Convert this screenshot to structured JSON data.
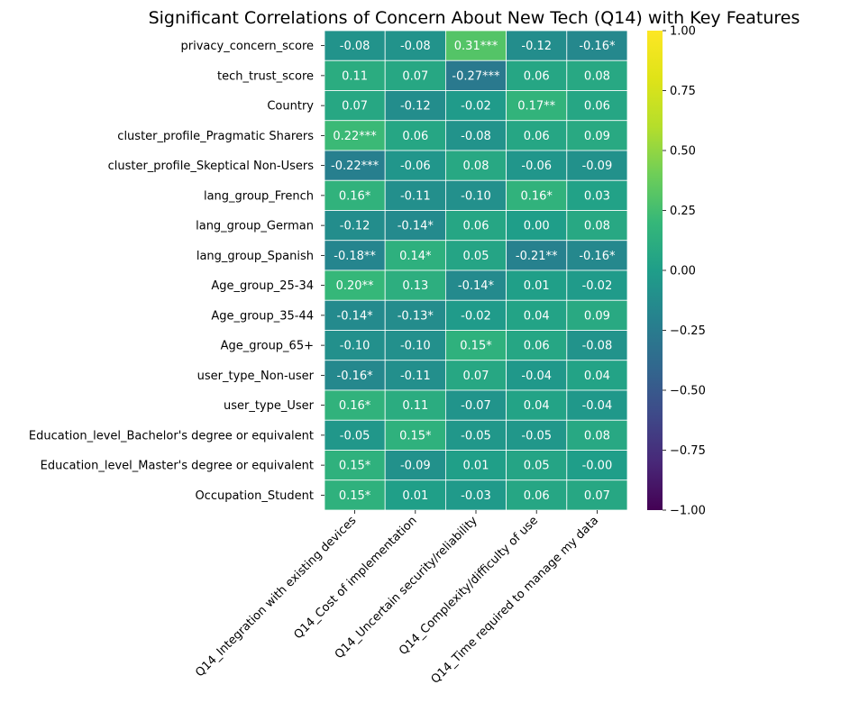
{
  "chart_data": {
    "type": "heatmap",
    "title": "Significant Correlations of Concern About New Tech (Q14) with Key Features",
    "rows": [
      "privacy_concern_score",
      "tech_trust_score",
      "Country",
      "cluster_profile_Pragmatic Sharers",
      "cluster_profile_Skeptical Non-Users",
      "lang_group_French",
      "lang_group_German",
      "lang_group_Spanish",
      "Age_group_25-34",
      "Age_group_35-44",
      "Age_group_65+",
      "user_type_Non-user",
      "user_type_User",
      "Education_level_Bachelor's degree or equivalent",
      "Education_level_Master's degree or equivalent",
      "Occupation_Student"
    ],
    "columns": [
      "Q14_Integration with existing devices",
      "Q14_Cost of implementation",
      "Q14_Uncertain security/reliability",
      "Q14_Complexity/difficulty of use",
      "Q14_Time required to manage my data"
    ],
    "values": [
      [
        -0.08,
        -0.08,
        0.31,
        -0.12,
        -0.16
      ],
      [
        0.11,
        0.07,
        -0.27,
        0.06,
        0.08
      ],
      [
        0.07,
        -0.12,
        -0.02,
        0.17,
        0.06
      ],
      [
        0.22,
        0.06,
        -0.08,
        0.06,
        0.09
      ],
      [
        -0.22,
        -0.06,
        0.08,
        -0.06,
        -0.09
      ],
      [
        0.16,
        -0.11,
        -0.1,
        0.16,
        0.03
      ],
      [
        -0.12,
        -0.14,
        0.06,
        0.0,
        0.08
      ],
      [
        -0.18,
        0.14,
        0.05,
        -0.21,
        -0.16
      ],
      [
        0.2,
        0.13,
        -0.14,
        0.01,
        -0.02
      ],
      [
        -0.14,
        -0.13,
        -0.02,
        0.04,
        0.09
      ],
      [
        -0.1,
        -0.1,
        0.15,
        0.06,
        -0.08
      ],
      [
        -0.16,
        -0.11,
        0.07,
        -0.04,
        0.04
      ],
      [
        0.16,
        0.11,
        -0.07,
        0.04,
        -0.04
      ],
      [
        -0.05,
        0.15,
        -0.05,
        -0.05,
        0.08
      ],
      [
        0.15,
        -0.09,
        0.01,
        0.05,
        -0.0
      ],
      [
        0.15,
        0.01,
        -0.03,
        0.06,
        0.07
      ]
    ],
    "annotations": [
      [
        "-0.08",
        "-0.08",
        "0.31***",
        "-0.12",
        "-0.16*"
      ],
      [
        "0.11",
        "0.07",
        "-0.27***",
        "0.06",
        "0.08"
      ],
      [
        "0.07",
        "-0.12",
        "-0.02",
        "0.17**",
        "0.06"
      ],
      [
        "0.22***",
        "0.06",
        "-0.08",
        "0.06",
        "0.09"
      ],
      [
        "-0.22***",
        "-0.06",
        "0.08",
        "-0.06",
        "-0.09"
      ],
      [
        "0.16*",
        "-0.11",
        "-0.10",
        "0.16*",
        "0.03"
      ],
      [
        "-0.12",
        "-0.14*",
        "0.06",
        "0.00",
        "0.08"
      ],
      [
        "-0.18**",
        "0.14*",
        "0.05",
        "-0.21**",
        "-0.16*"
      ],
      [
        "0.20**",
        "0.13",
        "-0.14*",
        "0.01",
        "-0.02"
      ],
      [
        "-0.14*",
        "-0.13*",
        "-0.02",
        "0.04",
        "0.09"
      ],
      [
        "-0.10",
        "-0.10",
        "0.15*",
        "0.06",
        "-0.08"
      ],
      [
        "-0.16*",
        "-0.11",
        "0.07",
        "-0.04",
        "0.04"
      ],
      [
        "0.16*",
        "0.11",
        "-0.07",
        "0.04",
        "-0.04"
      ],
      [
        "-0.05",
        "0.15*",
        "-0.05",
        "-0.05",
        "0.08"
      ],
      [
        "0.15*",
        "-0.09",
        "0.01",
        "0.05",
        "-0.00"
      ],
      [
        "0.15*",
        "0.01",
        "-0.03",
        "0.06",
        "0.07"
      ]
    ],
    "colormap": "viridis",
    "vmin": -1.0,
    "vmax": 1.0,
    "colorbar_ticks": [
      "1.00",
      "0.75",
      "0.50",
      "0.25",
      "0.00",
      "−0.25",
      "−0.50",
      "−0.75",
      "−1.00"
    ],
    "colorbar_tick_values": [
      1.0,
      0.75,
      0.5,
      0.25,
      0.0,
      -0.25,
      -0.5,
      -0.75,
      -1.0
    ],
    "grid_line_color": "#ffffff"
  }
}
